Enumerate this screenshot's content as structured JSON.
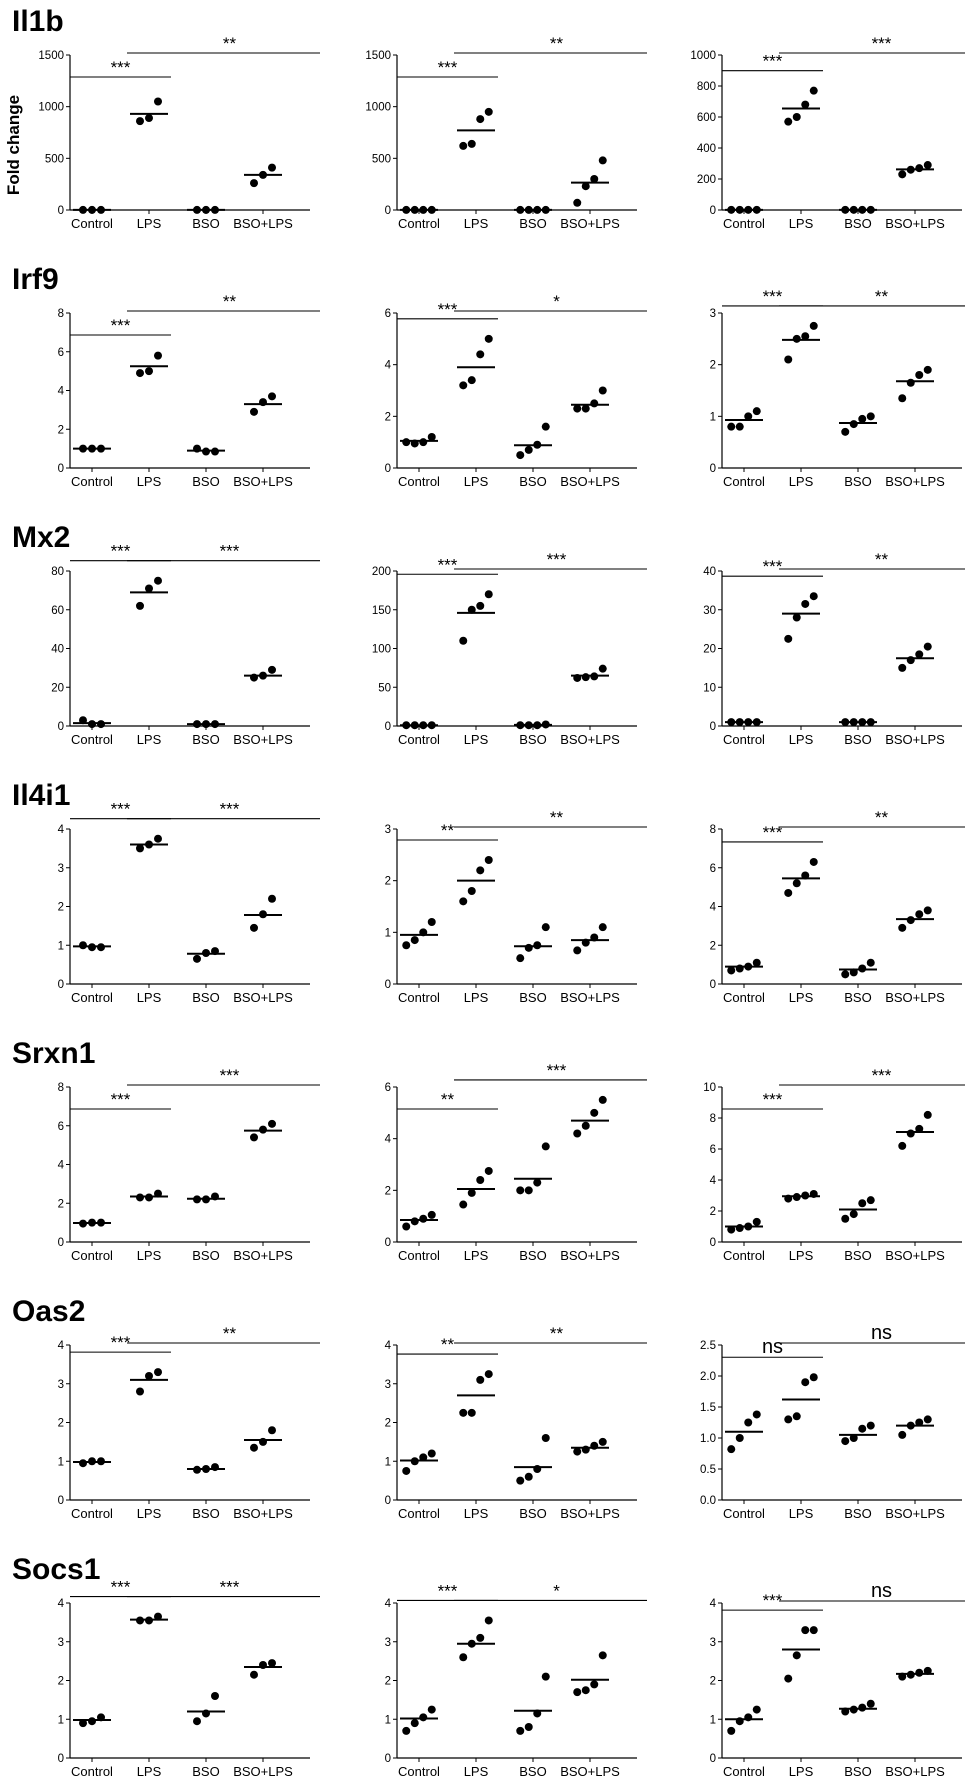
{
  "y_axis_label": "Fold change",
  "chart_data": [
    {
      "type": "scatter",
      "gene": "Il1b",
      "title": "Il1b",
      "categories": [
        "Control",
        "LPS",
        "BSO",
        "BSO+LPS"
      ],
      "ylim": [
        0,
        1500
      ],
      "yticks": [
        0,
        500,
        1000,
        1500
      ],
      "points": [
        [
          1,
          1,
          1
        ],
        [
          860,
          890,
          1050
        ],
        [
          1,
          1,
          1
        ],
        [
          260,
          340,
          410
        ]
      ],
      "means": [
        1,
        930,
        1,
        340
      ],
      "sig": [
        {
          "label": "***",
          "from": 0,
          "to": 1
        },
        {
          "label": "**",
          "from": 1,
          "to": 3
        }
      ]
    },
    {
      "type": "scatter",
      "gene": "Il1b",
      "title": "",
      "categories": [
        "Control",
        "LPS",
        "BSO",
        "BSO+LPS"
      ],
      "ylim": [
        0,
        1500
      ],
      "yticks": [
        0,
        500,
        1000,
        1500
      ],
      "points": [
        [
          1,
          1,
          1,
          1
        ],
        [
          620,
          640,
          880,
          950
        ],
        [
          1,
          1,
          1,
          1
        ],
        [
          70,
          230,
          300,
          480
        ]
      ],
      "means": [
        1,
        770,
        1,
        265
      ],
      "sig": [
        {
          "label": "***",
          "from": 0,
          "to": 1
        },
        {
          "label": "**",
          "from": 1,
          "to": 3
        }
      ]
    },
    {
      "type": "scatter",
      "gene": "Il1b",
      "title": "",
      "categories": [
        "Control",
        "LPS",
        "BSO",
        "BSO+LPS"
      ],
      "ylim": [
        0,
        1000
      ],
      "yticks": [
        0,
        200,
        400,
        600,
        800,
        1000
      ],
      "points": [
        [
          1,
          1,
          1,
          1
        ],
        [
          570,
          600,
          680,
          770
        ],
        [
          1,
          1,
          1,
          1
        ],
        [
          230,
          260,
          270,
          290
        ]
      ],
      "means": [
        1,
        655,
        1,
        262
      ],
      "sig": [
        {
          "label": "***",
          "from": 0,
          "to": 1
        },
        {
          "label": "***",
          "from": 1,
          "to": 3
        }
      ]
    },
    {
      "type": "scatter",
      "gene": "Irf9",
      "title": "Irf9",
      "categories": [
        "Control",
        "LPS",
        "BSO",
        "BSO+LPS"
      ],
      "ylim": [
        0,
        8
      ],
      "yticks": [
        0,
        2,
        4,
        6,
        8
      ],
      "points": [
        [
          1.0,
          1.0,
          1.0
        ],
        [
          4.9,
          5.0,
          5.8
        ],
        [
          1.0,
          0.85,
          0.85
        ],
        [
          2.9,
          3.4,
          3.7
        ]
      ],
      "means": [
        1.0,
        5.25,
        0.9,
        3.3
      ],
      "sig": [
        {
          "label": "***",
          "from": 0,
          "to": 1
        },
        {
          "label": "**",
          "from": 1,
          "to": 3
        }
      ]
    },
    {
      "type": "scatter",
      "gene": "Irf9",
      "title": "",
      "categories": [
        "Control",
        "LPS",
        "BSO",
        "BSO+LPS"
      ],
      "ylim": [
        0,
        6
      ],
      "yticks": [
        0,
        2,
        4,
        6
      ],
      "points": [
        [
          1.0,
          0.95,
          1.0,
          1.2
        ],
        [
          3.2,
          3.4,
          4.4,
          5.0
        ],
        [
          0.5,
          0.7,
          0.9,
          1.6
        ],
        [
          2.3,
          2.3,
          2.5,
          3.0
        ]
      ],
      "means": [
        1.05,
        3.9,
        0.88,
        2.45
      ],
      "sig": [
        {
          "label": "***",
          "from": 0,
          "to": 1
        },
        {
          "label": "*",
          "from": 1,
          "to": 3
        }
      ]
    },
    {
      "type": "scatter",
      "gene": "Irf9",
      "title": "",
      "categories": [
        "Control",
        "LPS",
        "BSO",
        "BSO+LPS"
      ],
      "ylim": [
        0,
        3
      ],
      "yticks": [
        0,
        1,
        2,
        3
      ],
      "points": [
        [
          0.8,
          0.8,
          1.0,
          1.1
        ],
        [
          2.1,
          2.5,
          2.55,
          2.75
        ],
        [
          0.7,
          0.85,
          0.95,
          1.0
        ],
        [
          1.35,
          1.65,
          1.8,
          1.9
        ]
      ],
      "means": [
        0.93,
        2.48,
        0.87,
        1.68
      ],
      "sig": [
        {
          "label": "***",
          "from": 0,
          "to": 1
        },
        {
          "label": "**",
          "from": 1,
          "to": 3
        }
      ]
    },
    {
      "type": "scatter",
      "gene": "Mx2",
      "title": "Mx2",
      "categories": [
        "Control",
        "LPS",
        "BSO",
        "BSO+LPS"
      ],
      "ylim": [
        0,
        80
      ],
      "yticks": [
        0,
        20,
        40,
        60,
        80
      ],
      "points": [
        [
          3,
          1,
          1
        ],
        [
          62,
          71,
          75
        ],
        [
          1,
          1,
          1
        ],
        [
          25,
          26,
          29
        ]
      ],
      "means": [
        1.5,
        69,
        1,
        26
      ],
      "sig": [
        {
          "label": "***",
          "from": 0,
          "to": 1
        },
        {
          "label": "***",
          "from": 1,
          "to": 3
        }
      ]
    },
    {
      "type": "scatter",
      "gene": "Mx2",
      "title": "",
      "categories": [
        "Control",
        "LPS",
        "BSO",
        "BSO+LPS"
      ],
      "ylim": [
        0,
        200
      ],
      "yticks": [
        0,
        50,
        100,
        150,
        200
      ],
      "points": [
        [
          1,
          1,
          1,
          1
        ],
        [
          110,
          150,
          155,
          170
        ],
        [
          1,
          1,
          1,
          2
        ],
        [
          62,
          63,
          64,
          74
        ]
      ],
      "means": [
        1,
        146,
        1.5,
        65
      ],
      "sig": [
        {
          "label": "***",
          "from": 0,
          "to": 1
        },
        {
          "label": "***",
          "from": 1,
          "to": 3
        }
      ]
    },
    {
      "type": "scatter",
      "gene": "Mx2",
      "title": "",
      "categories": [
        "Control",
        "LPS",
        "BSO",
        "BSO+LPS"
      ],
      "ylim": [
        0,
        40
      ],
      "yticks": [
        0,
        10,
        20,
        30,
        40
      ],
      "points": [
        [
          1,
          1,
          1,
          1
        ],
        [
          22.5,
          28,
          31.5,
          33.5
        ],
        [
          1,
          1,
          1,
          1
        ],
        [
          15,
          17,
          18.5,
          20.5
        ]
      ],
      "means": [
        1,
        29,
        1,
        17.5
      ],
      "sig": [
        {
          "label": "***",
          "from": 0,
          "to": 1
        },
        {
          "label": "**",
          "from": 1,
          "to": 3
        }
      ]
    },
    {
      "type": "scatter",
      "gene": "Il4i1",
      "title": "Il4i1",
      "categories": [
        "Control",
        "LPS",
        "BSO",
        "BSO+LPS"
      ],
      "ylim": [
        0,
        4
      ],
      "yticks": [
        0,
        1,
        2,
        3,
        4
      ],
      "points": [
        [
          1.0,
          0.95,
          0.95
        ],
        [
          3.5,
          3.6,
          3.75
        ],
        [
          0.65,
          0.8,
          0.85
        ],
        [
          1.45,
          1.8,
          2.2
        ]
      ],
      "means": [
        0.97,
        3.6,
        0.78,
        1.78
      ],
      "sig": [
        {
          "label": "***",
          "from": 0,
          "to": 1
        },
        {
          "label": "***",
          "from": 1,
          "to": 3
        }
      ]
    },
    {
      "type": "scatter",
      "gene": "Il4i1",
      "title": "",
      "categories": [
        "Control",
        "LPS",
        "BSO",
        "BSO+LPS"
      ],
      "ylim": [
        0,
        3
      ],
      "yticks": [
        0,
        1,
        2,
        3
      ],
      "points": [
        [
          0.75,
          0.85,
          1.0,
          1.2
        ],
        [
          1.6,
          1.8,
          2.2,
          2.4
        ],
        [
          0.5,
          0.7,
          0.75,
          1.1
        ],
        [
          0.65,
          0.8,
          0.9,
          1.1
        ]
      ],
      "means": [
        0.95,
        2.0,
        0.73,
        0.85
      ],
      "sig": [
        {
          "label": "**",
          "from": 0,
          "to": 1
        },
        {
          "label": "**",
          "from": 1,
          "to": 3
        }
      ]
    },
    {
      "type": "scatter",
      "gene": "Il4i1",
      "title": "",
      "categories": [
        "Control",
        "LPS",
        "BSO",
        "BSO+LPS"
      ],
      "ylim": [
        0,
        8
      ],
      "yticks": [
        0,
        2,
        4,
        6,
        8
      ],
      "points": [
        [
          0.7,
          0.8,
          0.9,
          1.1
        ],
        [
          4.7,
          5.2,
          5.6,
          6.3
        ],
        [
          0.5,
          0.6,
          0.8,
          1.1
        ],
        [
          2.9,
          3.3,
          3.6,
          3.8
        ]
      ],
      "means": [
        0.9,
        5.45,
        0.75,
        3.35
      ],
      "sig": [
        {
          "label": "***",
          "from": 0,
          "to": 1
        },
        {
          "label": "**",
          "from": 1,
          "to": 3
        }
      ]
    },
    {
      "type": "scatter",
      "gene": "Srxn1",
      "title": "Srxn1",
      "categories": [
        "Control",
        "LPS",
        "BSO",
        "BSO+LPS"
      ],
      "ylim": [
        0,
        8
      ],
      "yticks": [
        0,
        2,
        4,
        6,
        8
      ],
      "points": [
        [
          0.95,
          1.0,
          1.0
        ],
        [
          2.3,
          2.3,
          2.5
        ],
        [
          2.2,
          2.2,
          2.35
        ],
        [
          5.4,
          5.8,
          6.1
        ]
      ],
      "means": [
        0.98,
        2.35,
        2.23,
        5.75
      ],
      "sig": [
        {
          "label": "***",
          "from": 0,
          "to": 1
        },
        {
          "label": "***",
          "from": 1,
          "to": 3
        }
      ]
    },
    {
      "type": "scatter",
      "gene": "Srxn1",
      "title": "",
      "categories": [
        "Control",
        "LPS",
        "BSO",
        "BSO+LPS"
      ],
      "ylim": [
        0,
        6
      ],
      "yticks": [
        0,
        2,
        4,
        6
      ],
      "points": [
        [
          0.6,
          0.8,
          0.9,
          1.05
        ],
        [
          1.45,
          1.9,
          2.4,
          2.75
        ],
        [
          2.0,
          2.0,
          2.3,
          3.7
        ],
        [
          4.2,
          4.5,
          5.0,
          5.5
        ]
      ],
      "means": [
        0.85,
        2.05,
        2.45,
        4.7
      ],
      "sig": [
        {
          "label": "**",
          "from": 0,
          "to": 1
        },
        {
          "label": "***",
          "from": 1,
          "to": 3
        }
      ]
    },
    {
      "type": "scatter",
      "gene": "Srxn1",
      "title": "",
      "categories": [
        "Control",
        "LPS",
        "BSO",
        "BSO+LPS"
      ],
      "ylim": [
        0,
        10
      ],
      "yticks": [
        0,
        2,
        4,
        6,
        8,
        10
      ],
      "points": [
        [
          0.8,
          0.9,
          1.0,
          1.3
        ],
        [
          2.8,
          2.9,
          3.0,
          3.1
        ],
        [
          1.5,
          1.8,
          2.5,
          2.7
        ],
        [
          6.2,
          7.0,
          7.3,
          8.2
        ]
      ],
      "means": [
        1.0,
        2.95,
        2.1,
        7.1
      ],
      "sig": [
        {
          "label": "***",
          "from": 0,
          "to": 1
        },
        {
          "label": "***",
          "from": 1,
          "to": 3
        }
      ]
    },
    {
      "type": "scatter",
      "gene": "Oas2",
      "title": "Oas2",
      "categories": [
        "Control",
        "LPS",
        "BSO",
        "BSO+LPS"
      ],
      "ylim": [
        0,
        4
      ],
      "yticks": [
        0,
        1,
        2,
        3,
        4
      ],
      "points": [
        [
          0.95,
          1.0,
          1.0
        ],
        [
          2.8,
          3.2,
          3.3
        ],
        [
          0.78,
          0.8,
          0.85
        ],
        [
          1.35,
          1.5,
          1.8
        ]
      ],
      "means": [
        0.98,
        3.1,
        0.8,
        1.55
      ],
      "sig": [
        {
          "label": "***",
          "from": 0,
          "to": 1
        },
        {
          "label": "**",
          "from": 1,
          "to": 3
        }
      ]
    },
    {
      "type": "scatter",
      "gene": "Oas2",
      "title": "",
      "categories": [
        "Control",
        "LPS",
        "BSO",
        "BSO+LPS"
      ],
      "ylim": [
        0,
        4
      ],
      "yticks": [
        0,
        1,
        2,
        3,
        4
      ],
      "points": [
        [
          0.75,
          1.0,
          1.1,
          1.2
        ],
        [
          2.25,
          2.25,
          3.1,
          3.25
        ],
        [
          0.5,
          0.6,
          0.8,
          1.6
        ],
        [
          1.25,
          1.3,
          1.4,
          1.5
        ]
      ],
      "means": [
        1.02,
        2.7,
        0.85,
        1.35
      ],
      "sig": [
        {
          "label": "**",
          "from": 0,
          "to": 1
        },
        {
          "label": "**",
          "from": 1,
          "to": 3
        }
      ]
    },
    {
      "type": "scatter",
      "gene": "Oas2",
      "title": "",
      "categories": [
        "Control",
        "LPS",
        "BSO",
        "BSO+LPS"
      ],
      "ylim": [
        0,
        2.5
      ],
      "yticks": [
        0.0,
        0.5,
        1.0,
        1.5,
        2.0,
        2.5
      ],
      "tick_decimals": 1,
      "points": [
        [
          0.82,
          1.0,
          1.25,
          1.38
        ],
        [
          1.3,
          1.35,
          1.9,
          1.98
        ],
        [
          0.95,
          1.0,
          1.15,
          1.2
        ],
        [
          1.05,
          1.2,
          1.25,
          1.3
        ]
      ],
      "means": [
        1.1,
        1.62,
        1.05,
        1.2
      ],
      "sig": [
        {
          "label": "ns",
          "from": 0,
          "to": 1
        },
        {
          "label": "ns",
          "from": 1,
          "to": 3
        }
      ]
    },
    {
      "type": "scatter",
      "gene": "Socs1",
      "title": "Socs1",
      "categories": [
        "Control",
        "LPS",
        "BSO",
        "BSO+LPS"
      ],
      "ylim": [
        0,
        4
      ],
      "yticks": [
        0,
        1,
        2,
        3,
        4
      ],
      "points": [
        [
          0.9,
          0.95,
          1.05
        ],
        [
          3.55,
          3.55,
          3.65
        ],
        [
          0.95,
          1.15,
          1.6
        ],
        [
          2.15,
          2.4,
          2.45
        ]
      ],
      "means": [
        0.98,
        3.57,
        1.2,
        2.35
      ],
      "sig": [
        {
          "label": "***",
          "from": 0,
          "to": 1
        },
        {
          "label": "***",
          "from": 1,
          "to": 3
        }
      ]
    },
    {
      "type": "scatter",
      "gene": "Socs1",
      "title": "",
      "categories": [
        "Control",
        "LPS",
        "BSO",
        "BSO+LPS"
      ],
      "ylim": [
        0,
        4
      ],
      "yticks": [
        0,
        1,
        2,
        3,
        4
      ],
      "points": [
        [
          0.7,
          0.9,
          1.05,
          1.25
        ],
        [
          2.6,
          2.95,
          3.1,
          3.55
        ],
        [
          0.7,
          0.8,
          1.15,
          2.1
        ],
        [
          1.7,
          1.75,
          1.9,
          2.65
        ]
      ],
      "means": [
        1.02,
        2.95,
        1.22,
        2.02
      ],
      "sig": [
        {
          "label": "***",
          "from": 0,
          "to": 1
        },
        {
          "label": "*",
          "from": 1,
          "to": 3
        }
      ]
    },
    {
      "type": "scatter",
      "gene": "Socs1",
      "title": "",
      "categories": [
        "Control",
        "LPS",
        "BSO",
        "BSO+LPS"
      ],
      "ylim": [
        0,
        4
      ],
      "yticks": [
        0,
        1,
        2,
        3,
        4
      ],
      "points": [
        [
          0.7,
          0.95,
          1.05,
          1.25
        ],
        [
          2.05,
          2.65,
          3.3,
          3.3
        ],
        [
          1.2,
          1.25,
          1.3,
          1.4
        ],
        [
          2.1,
          2.15,
          2.2,
          2.25
        ]
      ],
      "means": [
        1.0,
        2.8,
        1.27,
        2.17
      ],
      "sig": [
        {
          "label": "***",
          "from": 0,
          "to": 1
        },
        {
          "label": "ns",
          "from": 1,
          "to": 3
        }
      ]
    }
  ]
}
